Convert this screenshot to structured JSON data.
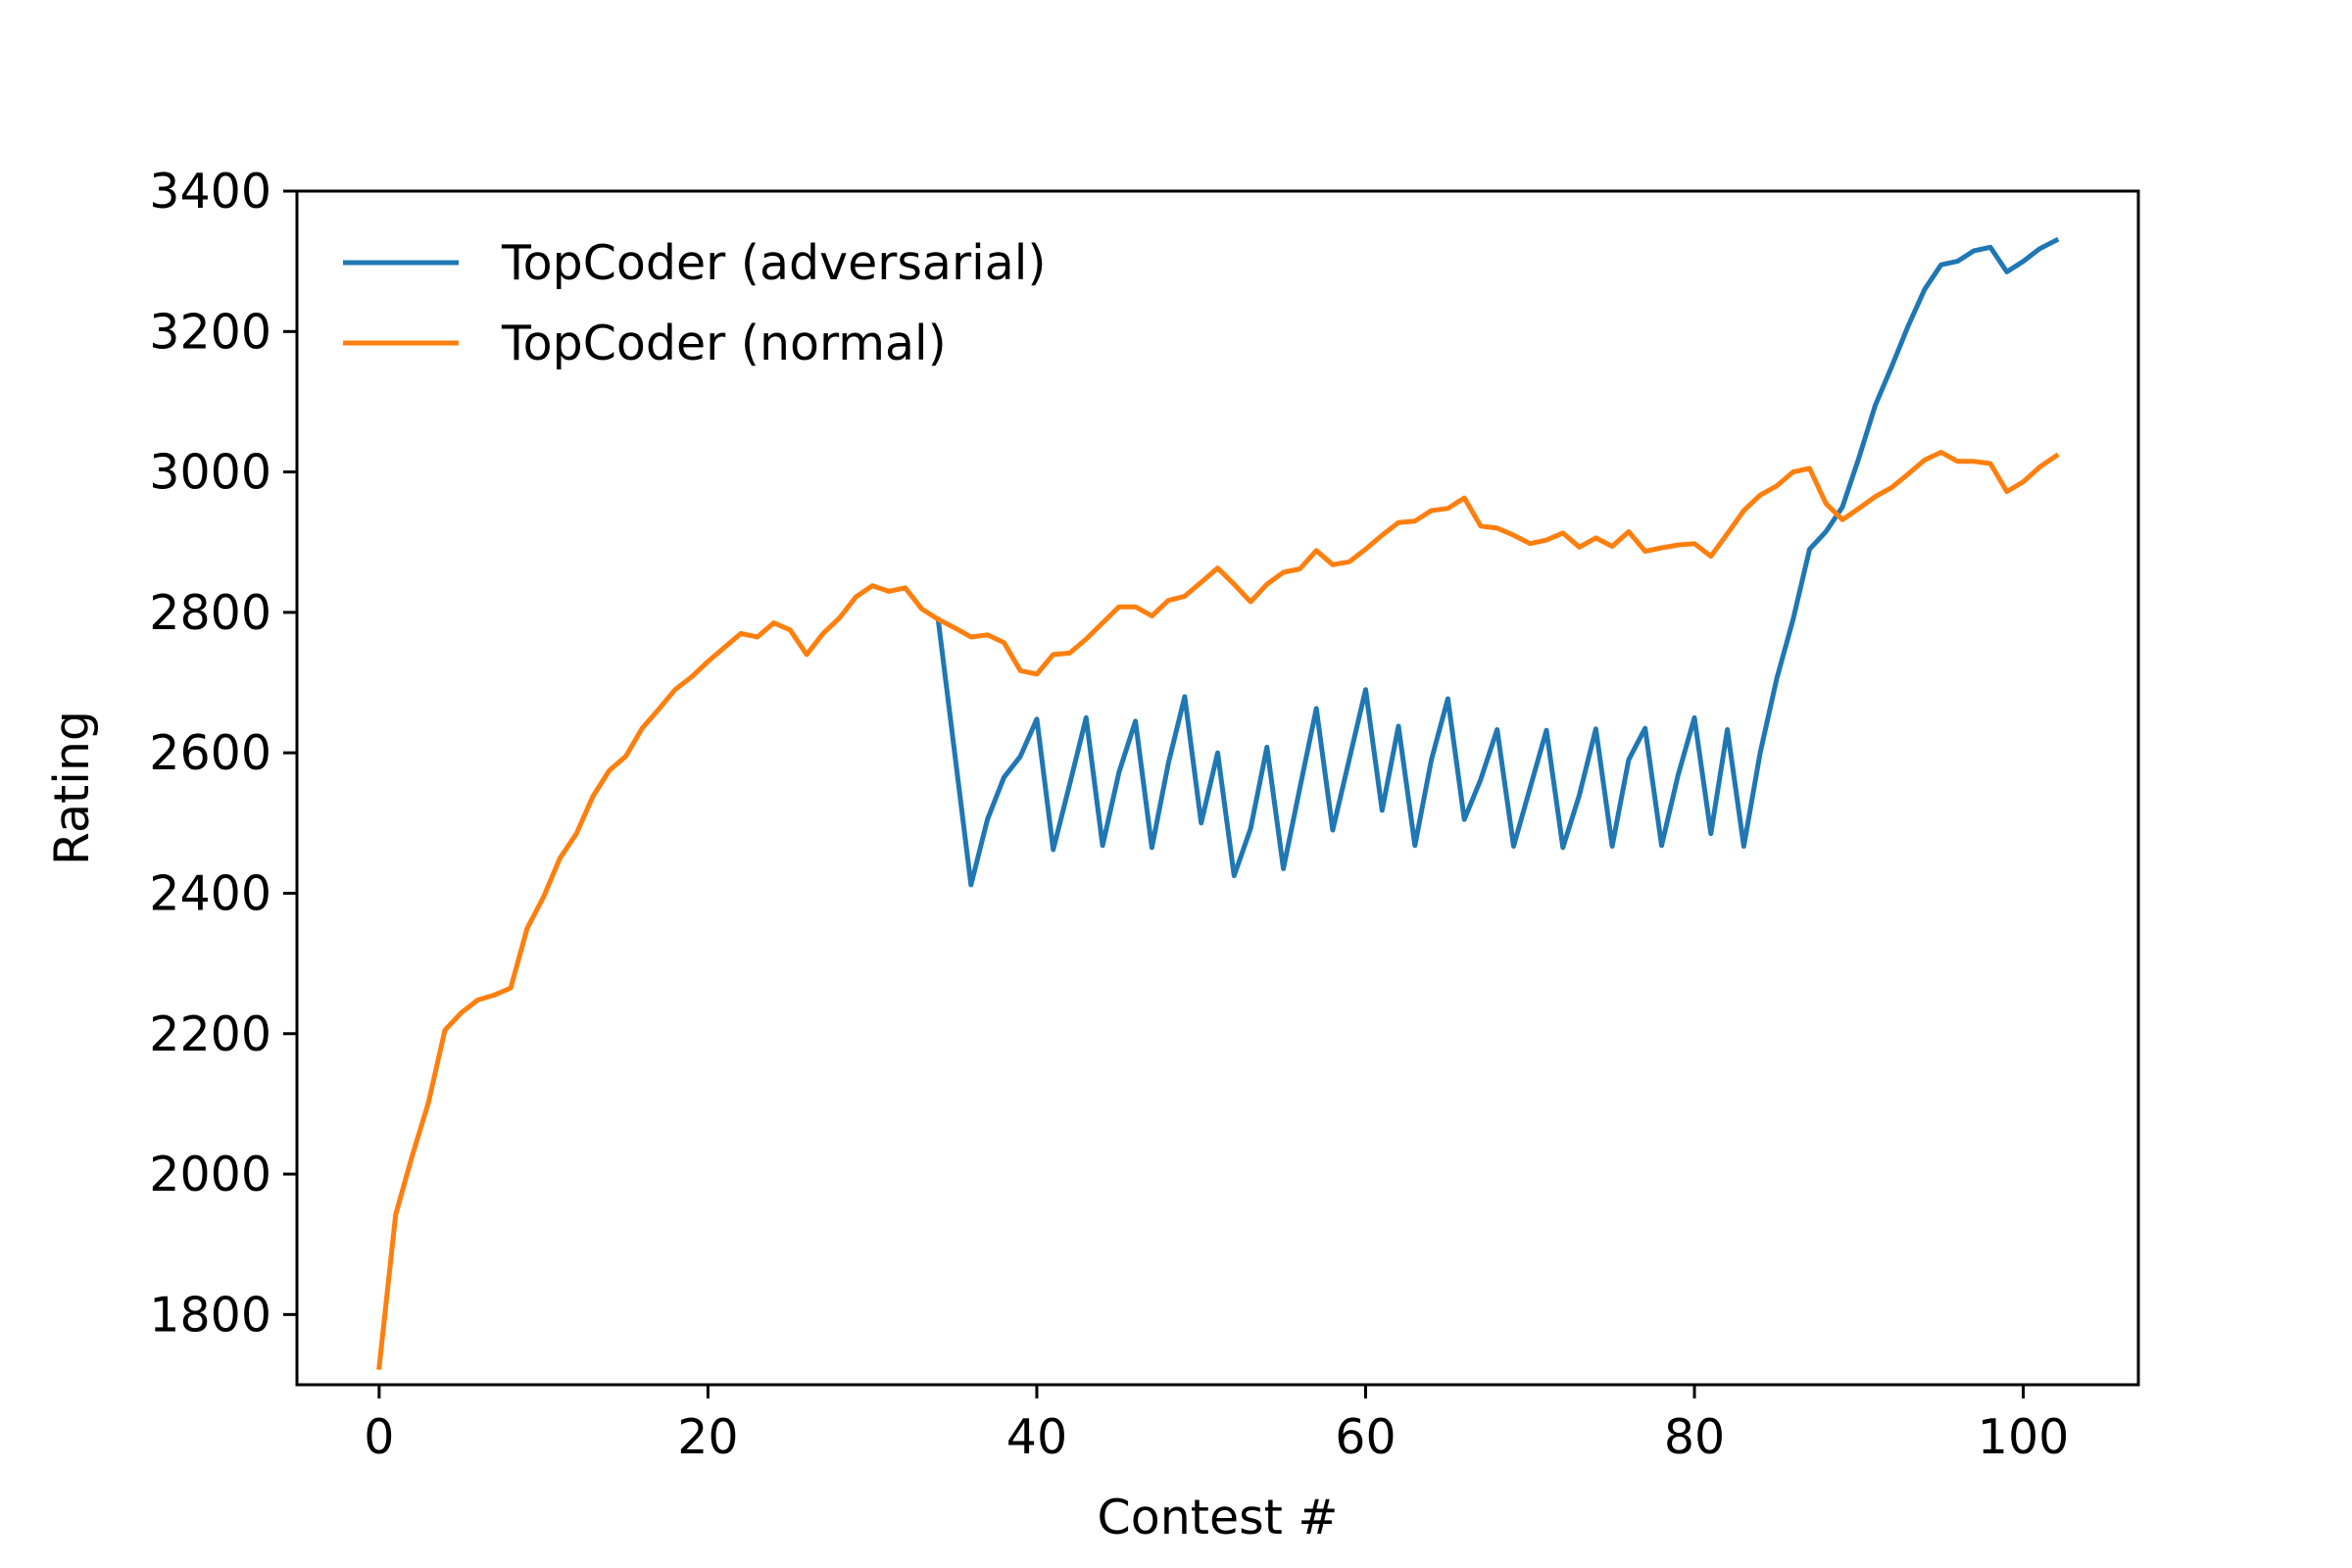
{
  "chart_data": {
    "type": "line",
    "title": "",
    "xlabel": "Contest #",
    "ylabel": "Rating",
    "xlim": [
      -5,
      107
    ],
    "ylim": [
      1700,
      3400
    ],
    "xticks": [
      0,
      20,
      40,
      60,
      80,
      100
    ],
    "yticks": [
      1800,
      2000,
      2200,
      2400,
      2600,
      2800,
      3000,
      3200,
      3400
    ],
    "grid": false,
    "legend_position": "upper-left",
    "series": [
      {
        "name": "TopCoder (adversarial)",
        "color": "#1f77b4",
        "x": [
          34,
          36,
          37,
          38,
          39,
          40,
          41,
          42,
          43,
          44,
          45,
          46,
          47,
          48,
          49,
          50,
          51,
          52,
          53,
          54,
          55,
          56,
          57,
          58,
          59,
          60,
          61,
          62,
          63,
          64,
          65,
          66,
          67,
          68,
          69,
          70,
          71,
          72,
          73,
          74,
          75,
          76,
          77,
          78,
          79,
          80,
          81,
          82,
          83,
          84,
          85,
          86,
          87,
          88,
          89,
          90,
          91,
          92,
          93,
          94,
          95,
          96,
          97,
          98,
          99,
          100,
          101,
          102
        ],
        "y": [
          2790,
          2412,
          2505,
          2565,
          2595,
          2648,
          2462,
          2555,
          2650,
          2468,
          2572,
          2645,
          2465,
          2585,
          2680,
          2500,
          2600,
          2425,
          2492,
          2608,
          2435,
          2550,
          2663,
          2490,
          2590,
          2690,
          2518,
          2638,
          2468,
          2590,
          2677,
          2505,
          2562,
          2633,
          2467,
          2550,
          2632,
          2465,
          2540,
          2634,
          2467,
          2590,
          2635,
          2468,
          2568,
          2650,
          2485,
          2633,
          2467,
          2600,
          2705,
          2790,
          2890,
          2915,
          2950,
          3020,
          3095,
          3150,
          3208,
          3260,
          3295,
          3300,
          3315,
          3320,
          3285,
          3300,
          3318,
          3330
        ]
      },
      {
        "name": "TopCoder (normal)",
        "color": "#ff7f0e",
        "x": [
          0,
          1,
          2,
          3,
          4,
          5,
          6,
          7,
          8,
          9,
          10,
          11,
          12,
          13,
          14,
          15,
          16,
          17,
          18,
          19,
          20,
          21,
          22,
          23,
          24,
          25,
          26,
          27,
          28,
          29,
          30,
          31,
          32,
          33,
          34,
          35,
          36,
          37,
          38,
          39,
          40,
          41,
          42,
          43,
          44,
          45,
          46,
          47,
          48,
          49,
          50,
          51,
          52,
          53,
          54,
          55,
          56,
          57,
          58,
          59,
          60,
          61,
          62,
          63,
          64,
          65,
          66,
          67,
          68,
          69,
          70,
          71,
          72,
          73,
          74,
          75,
          76,
          77,
          78,
          79,
          80,
          81,
          82,
          83,
          84,
          85,
          86,
          87,
          88,
          89,
          90,
          91,
          92,
          93,
          94,
          95,
          96,
          97,
          98,
          99,
          100,
          101,
          102
        ],
        "y": [
          1725,
          1942,
          2025,
          2102,
          2205,
          2230,
          2248,
          2255,
          2265,
          2350,
          2395,
          2450,
          2485,
          2538,
          2575,
          2595,
          2635,
          2662,
          2690,
          2708,
          2730,
          2750,
          2770,
          2765,
          2785,
          2775,
          2740,
          2770,
          2792,
          2822,
          2838,
          2830,
          2835,
          2805,
          2790,
          2778,
          2765,
          2768,
          2757,
          2717,
          2712,
          2740,
          2742,
          2762,
          2785,
          2808,
          2808,
          2795,
          2817,
          2823,
          2843,
          2863,
          2840,
          2815,
          2840,
          2857,
          2862,
          2888,
          2868,
          2872,
          2890,
          2910,
          2928,
          2930,
          2945,
          2948,
          2963,
          2923,
          2920,
          2910,
          2898,
          2903,
          2913,
          2893,
          2906,
          2894,
          2915,
          2887,
          2892,
          2896,
          2898,
          2880,
          2912,
          2945,
          2967,
          2980,
          3000,
          3005,
          2955,
          2932,
          2948,
          2965,
          2978,
          2997,
          3017,
          3028,
          3015,
          3015,
          3012,
          2972,
          2986,
          3007,
          3023
        ]
      }
    ]
  }
}
